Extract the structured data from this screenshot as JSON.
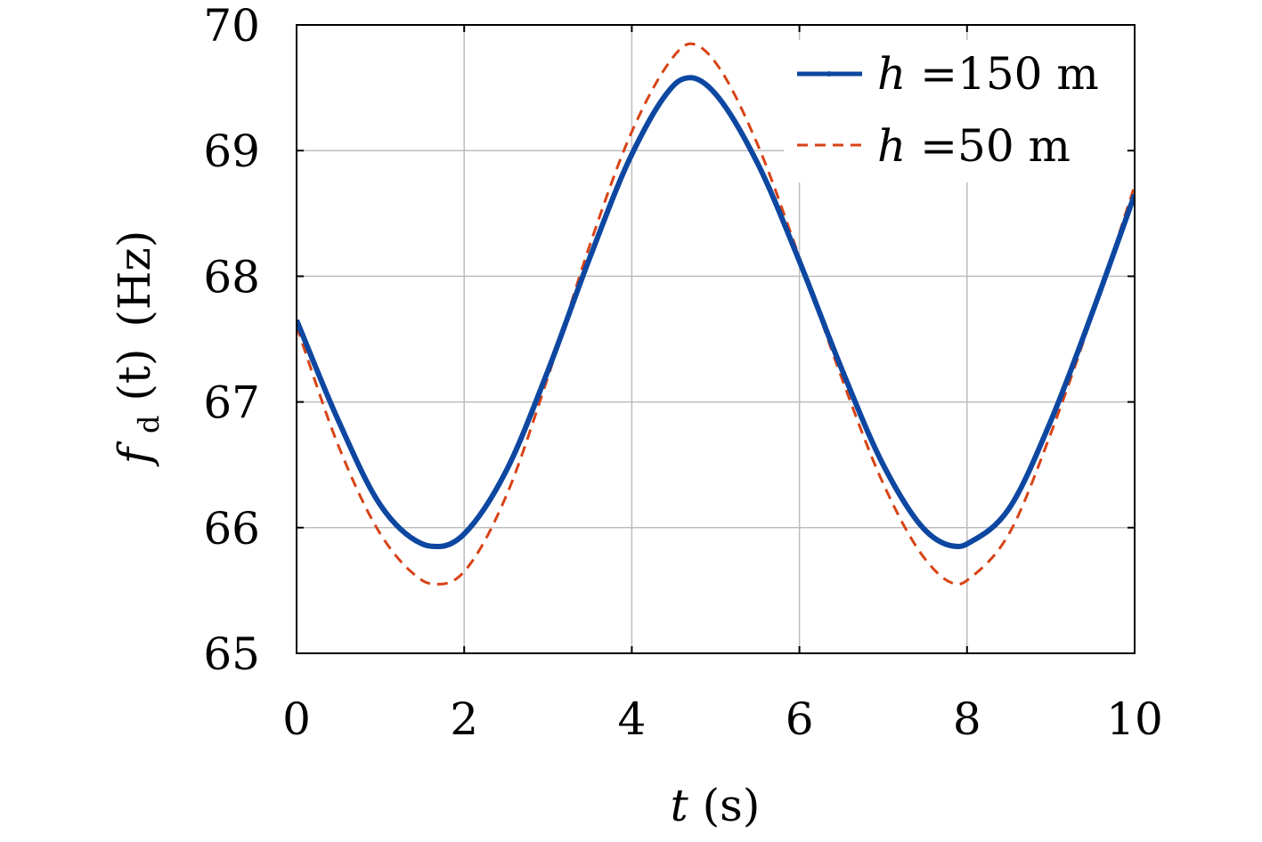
{
  "chart_data": {
    "type": "line",
    "xlabel": {
      "var": "t",
      "unit": "(s)"
    },
    "ylabel": {
      "var": "f",
      "sub": "d",
      "arg": "(t)",
      "unit": "(Hz)"
    },
    "xlim": [
      0,
      10
    ],
    "ylim": [
      65,
      70
    ],
    "xticks": [
      "0",
      "2",
      "4",
      "6",
      "8",
      "10"
    ],
    "yticks": [
      "65",
      "66",
      "67",
      "68",
      "69",
      "70"
    ],
    "grid": true,
    "legend_position": "top-right",
    "series": [
      {
        "name": "h=150 m",
        "label_var": "h",
        "label_rest": "=150 m",
        "color": "#0d47a1",
        "style": "solid",
        "x": [
          0,
          0.5,
          1.0,
          1.5,
          1.7,
          2.0,
          2.5,
          3.0,
          3.5,
          4.0,
          4.5,
          4.7,
          5.0,
          5.5,
          6.0,
          6.5,
          7.0,
          7.5,
          7.9,
          8.0,
          8.5,
          9.0,
          9.5,
          10.0
        ],
        "y": [
          67.65,
          66.85,
          66.18,
          65.87,
          65.85,
          65.95,
          66.45,
          67.25,
          68.15,
          68.97,
          69.52,
          69.58,
          69.45,
          68.9,
          68.12,
          67.27,
          66.5,
          65.98,
          65.85,
          65.87,
          66.15,
          66.85,
          67.72,
          68.65
        ]
      },
      {
        "name": "h=50 m",
        "label_var": "h",
        "label_rest": "=50 m",
        "color": "#d84315",
        "style": "dashed",
        "x": [
          0,
          0.5,
          1.0,
          1.5,
          1.7,
          2.0,
          2.5,
          3.0,
          3.5,
          4.0,
          4.5,
          4.7,
          5.0,
          5.5,
          6.0,
          6.5,
          7.0,
          7.5,
          7.9,
          8.0,
          8.5,
          9.0,
          9.5,
          10.0
        ],
        "y": [
          67.6,
          66.65,
          65.95,
          65.58,
          65.55,
          65.65,
          66.25,
          67.2,
          68.25,
          69.15,
          69.75,
          69.85,
          69.7,
          69.05,
          68.15,
          67.2,
          66.35,
          65.75,
          65.55,
          65.58,
          65.95,
          66.75,
          67.7,
          68.72
        ]
      }
    ]
  }
}
